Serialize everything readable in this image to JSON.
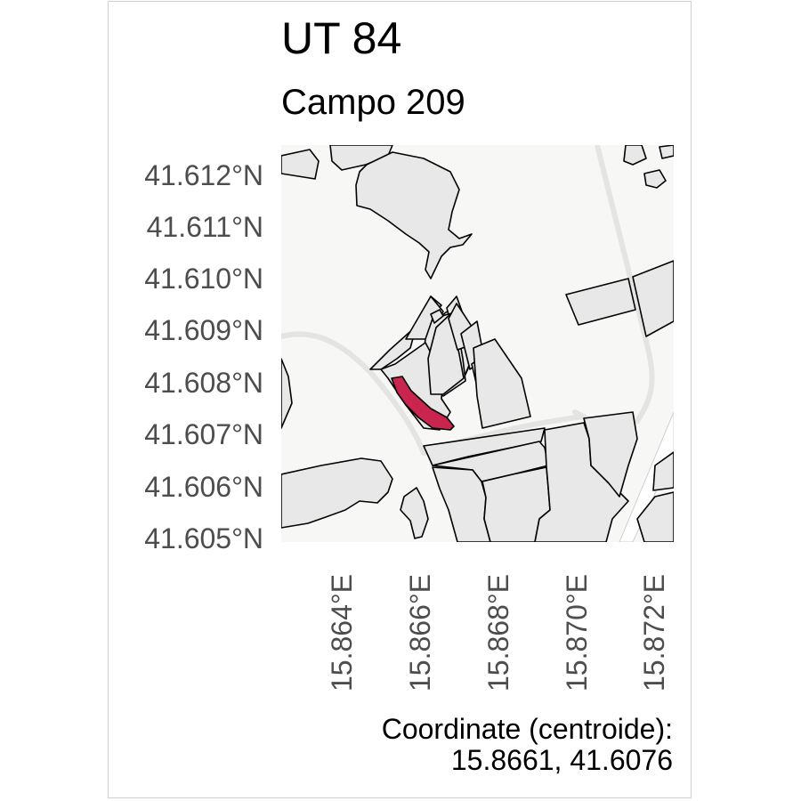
{
  "title": "UT 84",
  "subtitle": "Campo 209",
  "axes": {
    "y_ticks": [
      "41.612°N",
      "41.611°N",
      "41.610°N",
      "41.609°N",
      "41.608°N",
      "41.607°N",
      "41.606°N",
      "41.605°N"
    ],
    "x_ticks": [
      "15.864°E",
      "15.866°E",
      "15.868°E",
      "15.870°E",
      "15.872°E"
    ]
  },
  "caption": {
    "line1": "Coordinate (centroide):",
    "line2": "15.8661, 41.6076"
  },
  "colors": {
    "highlight": "#c9254f",
    "parcel_fill": "#e6e6e6",
    "background": "#f7f7f6",
    "road": "#e4e4e2"
  }
}
